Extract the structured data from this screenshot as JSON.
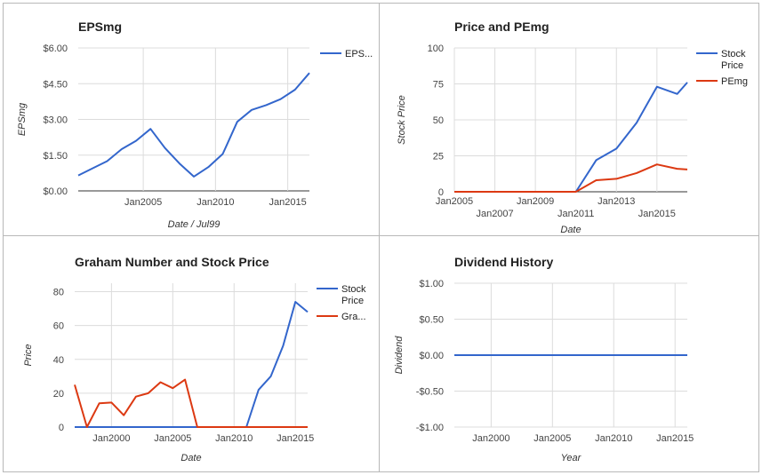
{
  "chart_data": [
    {
      "type": "line",
      "title": "EPSmg",
      "xlabel": "Date / Jul99",
      "ylabel": "EPSmg",
      "xlim": [
        2000.5,
        2016.5
      ],
      "ylim": [
        0,
        6
      ],
      "yticks": [
        0,
        1.5,
        3,
        4.5,
        6
      ],
      "ytick_labels": [
        "$0.00",
        "$1.50",
        "$3.00",
        "$4.50",
        "$6.00"
      ],
      "xticks": [
        2005,
        2010,
        2015
      ],
      "xtick_labels": [
        "Jan2005",
        "Jan2010",
        "Jan2015"
      ],
      "grid": true,
      "legend": "right",
      "series": [
        {
          "name": "EPS...",
          "color": "#3366cc",
          "x": [
            2000.5,
            2001.5,
            2002.5,
            2003.5,
            2004.5,
            2005.5,
            2006.5,
            2007.5,
            2008.5,
            2009.5,
            2010.5,
            2011.5,
            2012.5,
            2013.5,
            2014.5,
            2015.5,
            2016.5
          ],
          "y": [
            0.65,
            0.95,
            1.25,
            1.75,
            2.1,
            2.6,
            1.8,
            1.15,
            0.6,
            1.0,
            1.55,
            2.9,
            3.4,
            3.6,
            3.85,
            4.25,
            4.95
          ]
        }
      ]
    },
    {
      "type": "line",
      "title": "Price and PEmg",
      "xlabel": "Date",
      "ylabel": "Stock Price",
      "xlim": [
        2005,
        2016.5
      ],
      "ylim": [
        0,
        100
      ],
      "yticks": [
        0,
        25,
        50,
        75,
        100
      ],
      "ytick_labels": [
        "0",
        "25",
        "50",
        "75",
        "100"
      ],
      "xticks": [
        2005,
        2007,
        2009,
        2011,
        2013,
        2015
      ],
      "xtick_labels": [
        "Jan2005",
        "Jan2007",
        "Jan2009",
        "Jan2011",
        "Jan2013",
        "Jan2015"
      ],
      "grid": true,
      "legend": "right",
      "series": [
        {
          "name": "Stock Price",
          "color": "#3366cc",
          "x": [
            2005,
            2006,
            2007,
            2008,
            2009,
            2010,
            2011,
            2012,
            2013,
            2014,
            2015,
            2016,
            2016.5
          ],
          "y": [
            0,
            0,
            0,
            0,
            0,
            0,
            0,
            22,
            30,
            48,
            73,
            68,
            76
          ]
        },
        {
          "name": "PEmg",
          "color": "#dc3912",
          "x": [
            2005,
            2006,
            2007,
            2008,
            2009,
            2010,
            2011,
            2012,
            2013,
            2014,
            2015,
            2016,
            2016.5
          ],
          "y": [
            0,
            0,
            0,
            0,
            0,
            0,
            0,
            8,
            9,
            13,
            19,
            16,
            15.5
          ]
        }
      ]
    },
    {
      "type": "line",
      "title": "Graham Number and Stock Price",
      "xlabel": "Date",
      "ylabel": "Price",
      "xlim": [
        1997,
        2016
      ],
      "ylim": [
        0,
        85
      ],
      "yticks": [
        0,
        20,
        40,
        60,
        80
      ],
      "ytick_labels": [
        "0",
        "20",
        "40",
        "60",
        "80"
      ],
      "xticks": [
        2000,
        2005,
        2010,
        2015
      ],
      "xtick_labels": [
        "Jan2000",
        "Jan2005",
        "Jan2010",
        "Jan2015"
      ],
      "grid": true,
      "legend": "right",
      "series": [
        {
          "name": "Stock Price",
          "color": "#3366cc",
          "x": [
            1997,
            2011,
            2012,
            2013,
            2014,
            2015,
            2016
          ],
          "y": [
            0,
            0,
            22,
            30,
            48,
            74,
            68
          ]
        },
        {
          "name": "Gra...",
          "color": "#dc3912",
          "x": [
            1997,
            1998,
            1999,
            2000,
            2001,
            2002,
            2003,
            2004,
            2005,
            2006,
            2007,
            2008,
            2009,
            2010,
            2011,
            2012,
            2013,
            2014,
            2015,
            2016
          ],
          "y": [
            25,
            0,
            14,
            14.5,
            7,
            18,
            20,
            26.5,
            23,
            28,
            0,
            0,
            0,
            0,
            0,
            0,
            0,
            0,
            0,
            0
          ]
        }
      ]
    },
    {
      "type": "line",
      "title": "Dividend History",
      "xlabel": "Year",
      "ylabel": "Dividend",
      "xlim": [
        1997,
        2016
      ],
      "ylim": [
        -1,
        1
      ],
      "yticks": [
        -1,
        -0.5,
        0,
        0.5,
        1
      ],
      "ytick_labels": [
        "-$1.00",
        "-$0.50",
        "$0.00",
        "$0.50",
        "$1.00"
      ],
      "xticks": [
        2000,
        2005,
        2010,
        2015
      ],
      "xtick_labels": [
        "Jan2000",
        "Jan2005",
        "Jan2010",
        "Jan2015"
      ],
      "grid": true,
      "legend": "none",
      "series": [
        {
          "color": "#3366cc",
          "x": [
            1997,
            2016
          ],
          "y": [
            0,
            0
          ]
        }
      ]
    }
  ]
}
